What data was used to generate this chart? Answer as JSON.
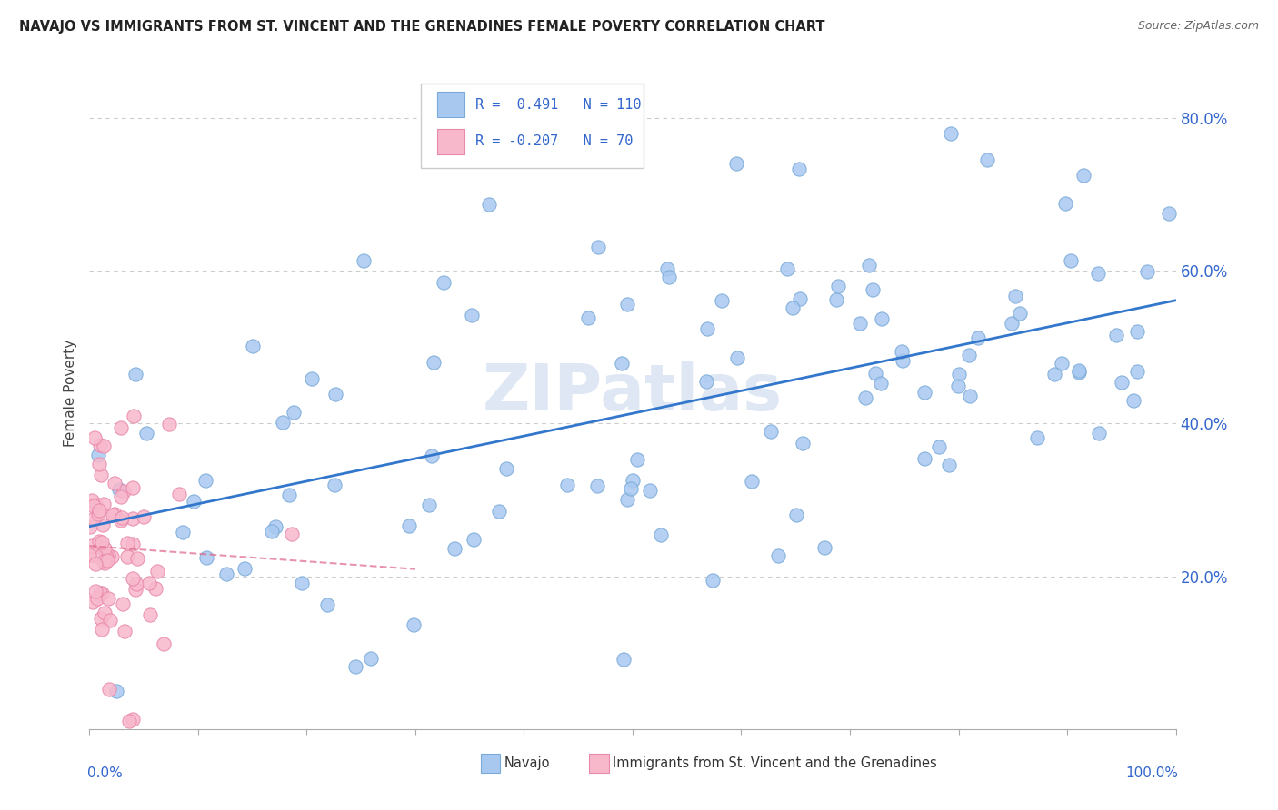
{
  "title": "NAVAJO VS IMMIGRANTS FROM ST. VINCENT AND THE GRENADINES FEMALE POVERTY CORRELATION CHART",
  "source": "Source: ZipAtlas.com",
  "ylabel": "Female Poverty",
  "navajo_R": 0.491,
  "navajo_N": 110,
  "immigrants_R": -0.207,
  "immigrants_N": 70,
  "navajo_color": "#a8c8f0",
  "navajo_edge": "#7aaad8",
  "immigrants_color": "#f8b8cc",
  "immigrants_edge": "#e888aa",
  "regression_line_color": "#3377cc",
  "immigrants_line_color": "#dd6688",
  "watermark_color": "#c8d8ec",
  "ytick_labels": [
    "",
    "20.0%",
    "40.0%",
    "60.0%",
    "80.0%"
  ],
  "ytick_vals": [
    0.0,
    0.2,
    0.4,
    0.6,
    0.8
  ],
  "xlim": [
    0.0,
    1.0
  ],
  "ylim": [
    0.0,
    0.88
  ],
  "background_color": "#ffffff",
  "grid_color": "#cccccc",
  "tick_label_color": "#3366cc",
  "title_color": "#222222",
  "source_color": "#666666",
  "ylabel_color": "#444444"
}
